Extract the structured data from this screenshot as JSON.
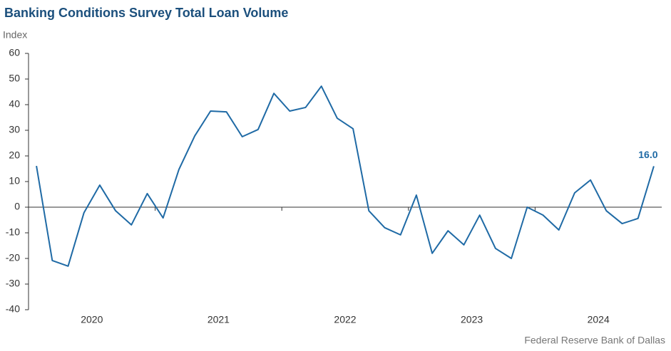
{
  "chart_data": {
    "type": "line",
    "title": "Banking Conditions Survey Total Loan Volume",
    "y_label": "Index",
    "source": "Federal Reserve Bank of Dallas",
    "categories": [
      "2020",
      "2020",
      "2020",
      "2020",
      "2020",
      "2020",
      "2020",
      "2020",
      "2021",
      "2021",
      "2021",
      "2021",
      "2021",
      "2021",
      "2021",
      "2021",
      "2022",
      "2022",
      "2022",
      "2022",
      "2022",
      "2022",
      "2022",
      "2022",
      "2023",
      "2023",
      "2023",
      "2023",
      "2023",
      "2023",
      "2023",
      "2023",
      "2024",
      "2024",
      "2024",
      "2024",
      "2024",
      "2024",
      "2024",
      "2024"
    ],
    "series": [
      {
        "name": "Total Loan Volume",
        "color": "#1f6aa5",
        "values": [
          16.1,
          -20.8,
          -23.0,
          -2.2,
          8.6,
          -1.4,
          -6.9,
          5.3,
          -4.2,
          14.7,
          27.8,
          37.5,
          37.2,
          27.5,
          30.3,
          44.4,
          37.5,
          38.9,
          47.2,
          34.7,
          30.6,
          -1.4,
          -8.0,
          -10.8,
          4.7,
          -18.0,
          -9.2,
          -14.7,
          -3.1,
          -16.1,
          -20.0,
          0.0,
          -3.1,
          -8.9,
          5.6,
          10.6,
          -1.4,
          -6.4,
          -4.4,
          16.0
        ],
        "end_label": "16.0"
      }
    ],
    "ylim": [
      -40,
      60
    ],
    "yticks": [
      -40,
      -30,
      -20,
      -10,
      0,
      10,
      20,
      30,
      40,
      50,
      60
    ]
  }
}
